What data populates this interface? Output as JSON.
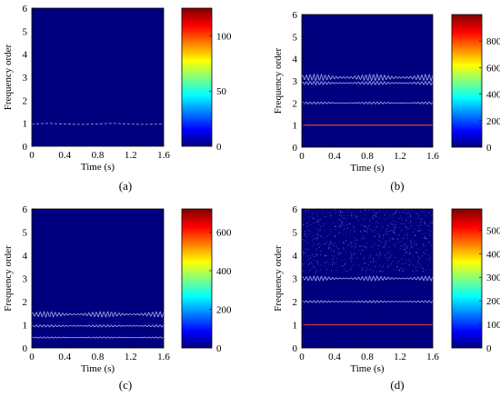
{
  "colormap": [
    "#000080",
    "#0000ff",
    "#00ffff",
    "#ffff00",
    "#ff0000",
    "#800000"
  ],
  "colors": {
    "plot_bg": "#00007f",
    "ridge": "#c8c8ff",
    "fundamental_strong": "#c04040"
  },
  "chart_data": [
    {
      "type": "heatmap",
      "panel_label": "(a)",
      "xlabel": "Time (s)",
      "ylabel": "Frequency order",
      "xlim": [
        0,
        1.6
      ],
      "ylim": [
        0,
        6
      ],
      "x_ticks": [
        "0",
        "0.4",
        "0.8",
        "1.2",
        "1.6"
      ],
      "y_ticks": [
        "0",
        "1",
        "2",
        "3",
        "4",
        "5",
        "6"
      ],
      "colorbar": {
        "range": [
          0,
          125
        ],
        "ticks": [
          "0",
          "50",
          "100"
        ],
        "tick_values": [
          0,
          50,
          100
        ]
      },
      "ridges": [
        {
          "order": 0.97,
          "ripple": 0.02,
          "style": "dashed"
        }
      ]
    },
    {
      "type": "heatmap",
      "panel_label": "(b)",
      "xlabel": "Time (s)",
      "ylabel": "Frequency order",
      "xlim": [
        0,
        1.6
      ],
      "ylim": [
        0,
        6
      ],
      "x_ticks": [
        "0",
        "0.4",
        "0.8",
        "1.2",
        "1.6"
      ],
      "y_ticks": [
        "0",
        "1",
        "2",
        "3",
        "4",
        "5",
        "6"
      ],
      "colorbar": {
        "range": [
          0,
          1000
        ],
        "ticks": [
          "0",
          "200",
          "400",
          "600",
          "800"
        ],
        "tick_values": [
          0,
          200,
          400,
          600,
          800
        ]
      },
      "ridges": [
        {
          "order": 1.0,
          "ripple": 0.0,
          "style": "fundamental"
        },
        {
          "order": 2.0,
          "ripple": 0.05,
          "style": "wavy"
        },
        {
          "order": 2.9,
          "ripple": 0.08,
          "style": "wavy"
        },
        {
          "order": 3.15,
          "ripple": 0.15,
          "style": "wavy"
        }
      ]
    },
    {
      "type": "heatmap",
      "panel_label": "(c)",
      "xlabel": "Time (s)",
      "ylabel": "Frequency order",
      "xlim": [
        0,
        1.6
      ],
      "ylim": [
        0,
        6
      ],
      "x_ticks": [
        "0",
        "0.4",
        "0.8",
        "1.2",
        "1.6"
      ],
      "y_ticks": [
        "0",
        "1",
        "2",
        "3",
        "4",
        "5",
        "6"
      ],
      "colorbar": {
        "range": [
          0,
          720
        ],
        "ticks": [
          "0",
          "200",
          "400",
          "600"
        ],
        "tick_values": [
          0,
          200,
          400,
          600
        ]
      },
      "ridges": [
        {
          "order": 0.45,
          "ripple": 0.03,
          "style": "wavy"
        },
        {
          "order": 0.95,
          "ripple": 0.05,
          "style": "wavy"
        },
        {
          "order": 1.45,
          "ripple": 0.12,
          "style": "wavy"
        }
      ]
    },
    {
      "type": "heatmap",
      "panel_label": "(d)",
      "xlabel": "Time (s)",
      "ylabel": "Frequency order",
      "xlim": [
        0,
        1.6
      ],
      "ylim": [
        0,
        6
      ],
      "x_ticks": [
        "0",
        "0.4",
        "0.8",
        "1.2",
        "1.6"
      ],
      "y_ticks": [
        "0",
        "1",
        "2",
        "3",
        "4",
        "5",
        "6"
      ],
      "colorbar": {
        "range": [
          0,
          590
        ],
        "ticks": [
          "0",
          "100",
          "200",
          "300",
          "400",
          "500"
        ],
        "tick_values": [
          0,
          100,
          200,
          300,
          400,
          500
        ]
      },
      "ridges": [
        {
          "order": 1.0,
          "ripple": 0.0,
          "style": "fundamental"
        },
        {
          "order": 2.0,
          "ripple": 0.05,
          "style": "wavy"
        },
        {
          "order": 3.0,
          "ripple": 0.1,
          "style": "wavy"
        }
      ],
      "scatter_noise_range": [
        3.3,
        6
      ]
    }
  ]
}
